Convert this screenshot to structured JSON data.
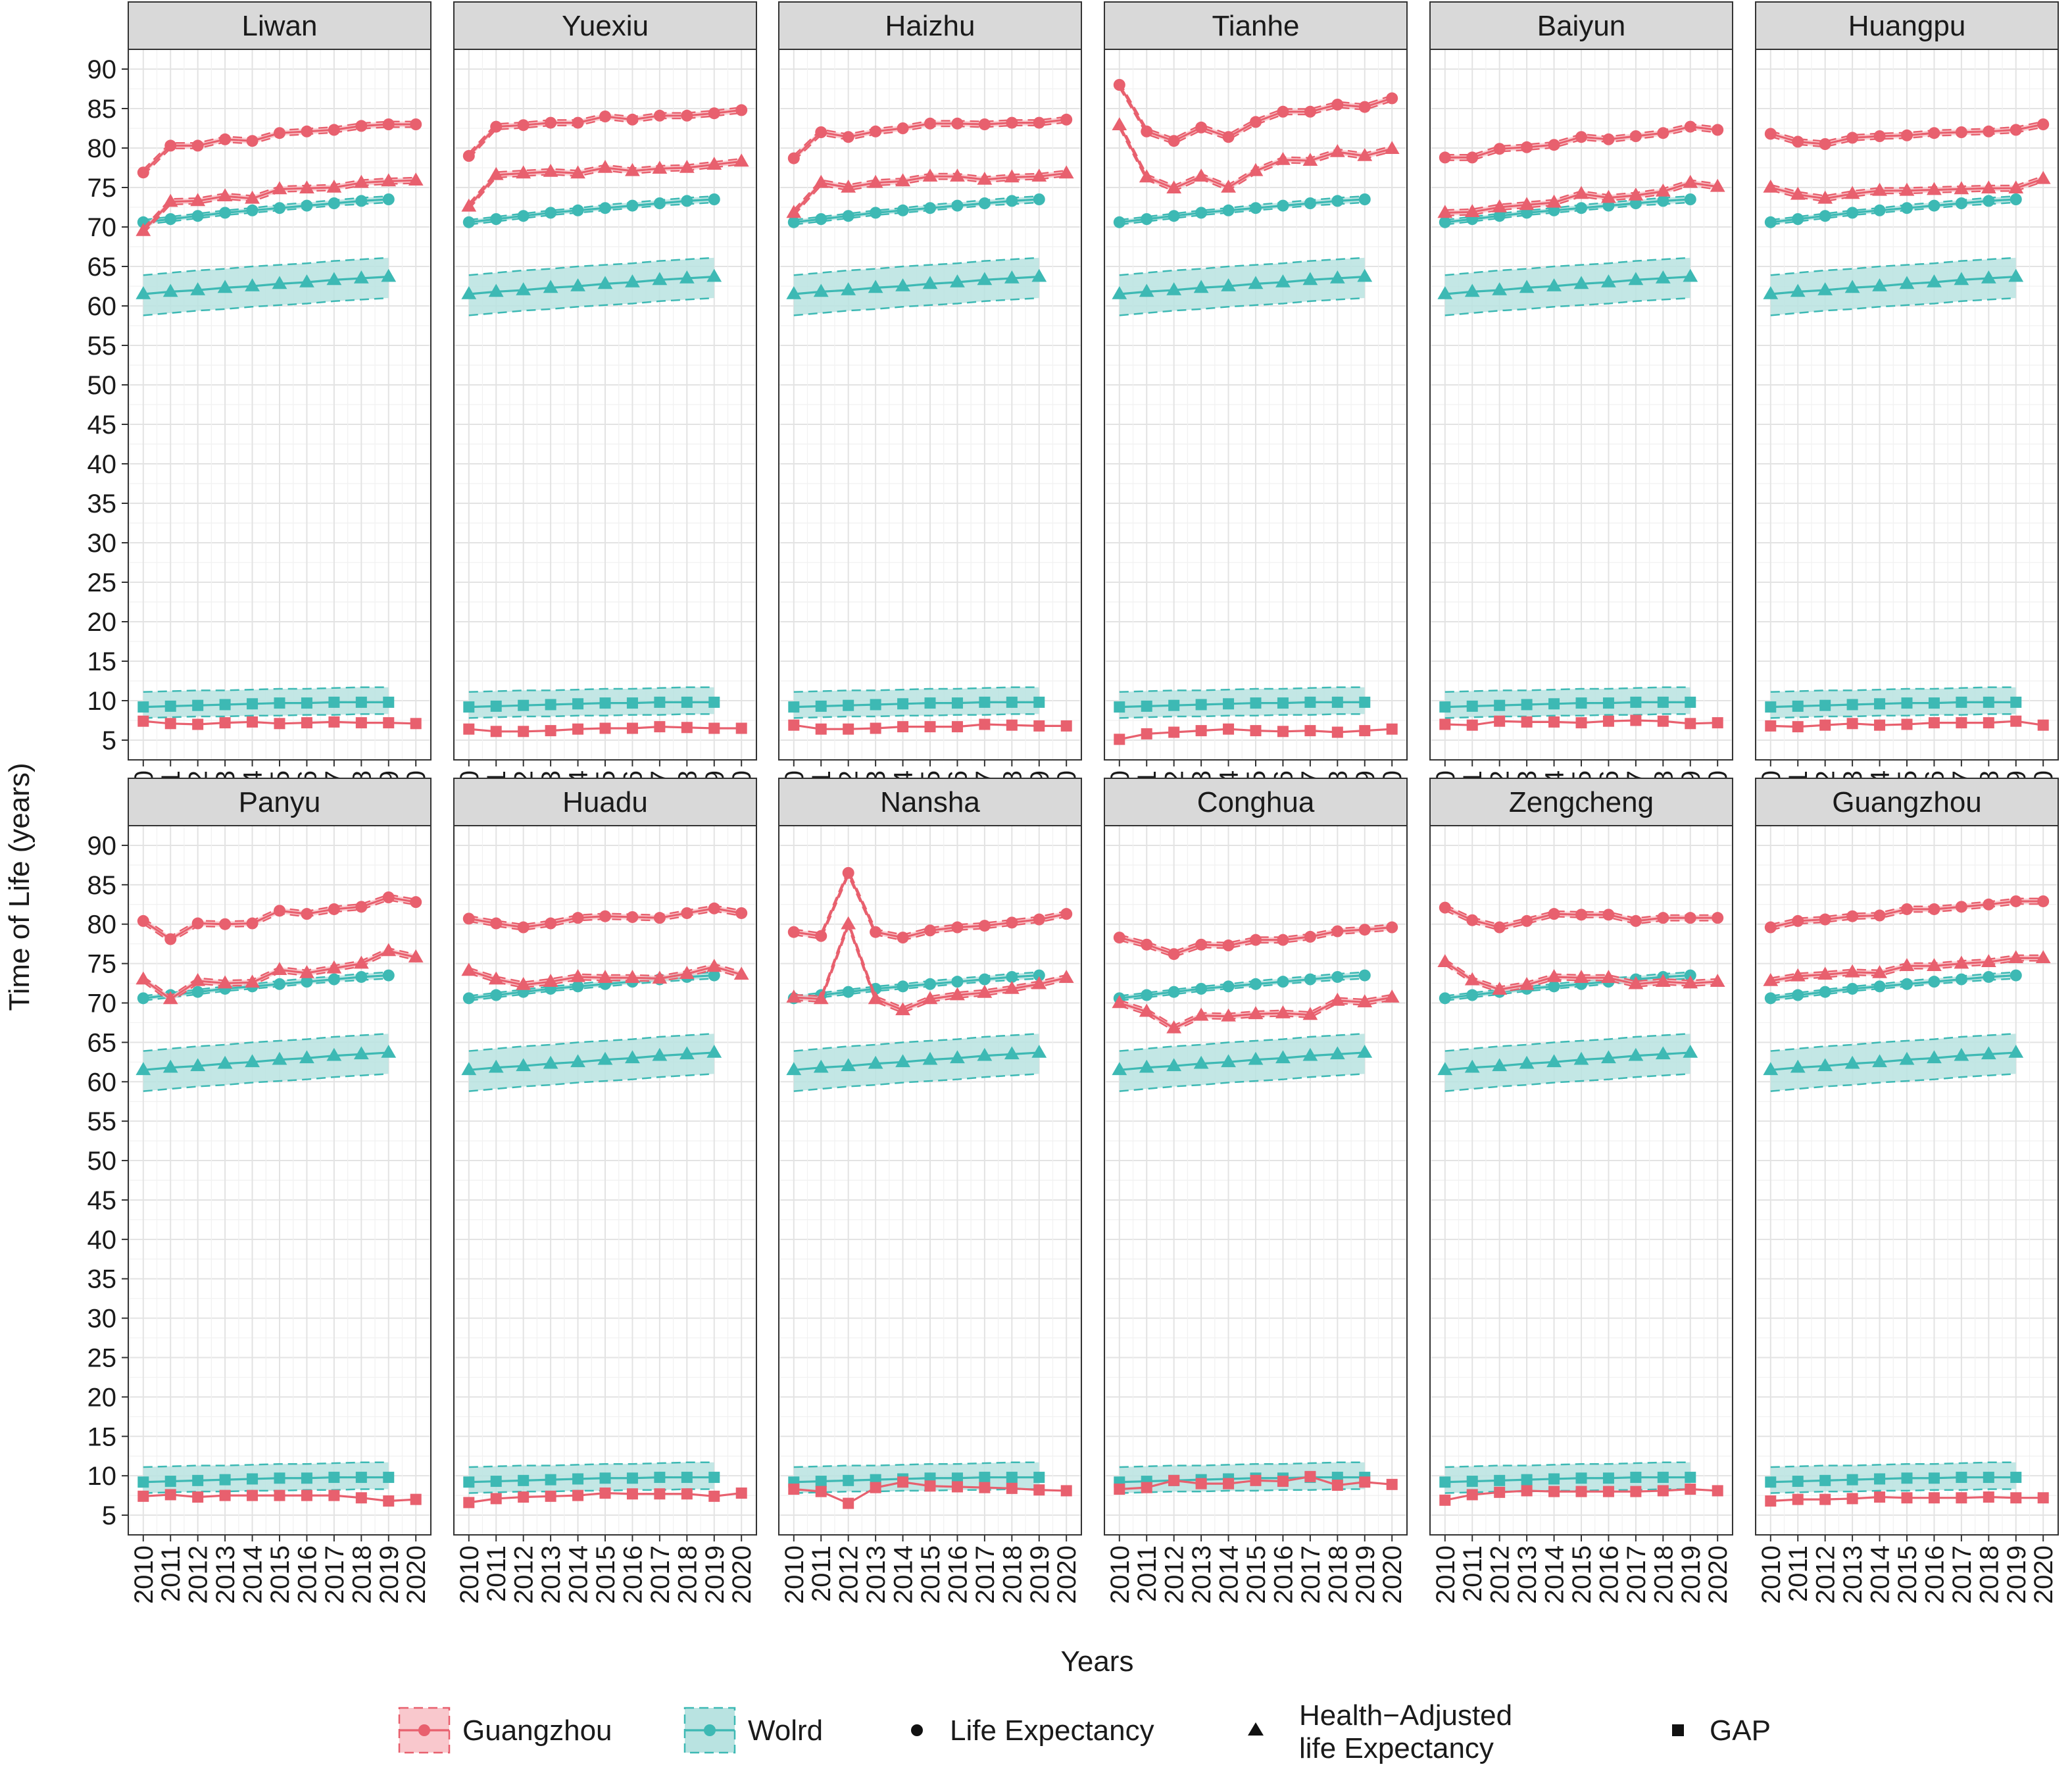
{
  "chart_data": {
    "type": "line",
    "layout": "faceted 2x6",
    "xlabel": "Years",
    "ylabel": "Time of Life (years)",
    "x": [
      2010,
      2011,
      2012,
      2013,
      2014,
      2015,
      2016,
      2017,
      2018,
      2019,
      2020
    ],
    "y_ticks": [
      5,
      10,
      15,
      20,
      25,
      30,
      35,
      40,
      45,
      50,
      55,
      60,
      65,
      70,
      75,
      80,
      85,
      90
    ],
    "ylim": [
      2.5,
      92.5
    ],
    "grid": true,
    "legend_position": "bottom",
    "colors": {
      "guangzhou": "#E8606E",
      "world": "#3DB9B4",
      "guangzhou_fill": "#F9C8CD",
      "world_fill": "#B9E3E1"
    },
    "legend": {
      "guangzhou": "Guangzhou",
      "world": "Wolrd",
      "le": "Life Expectancy",
      "hale_line1": "Health−Adjusted",
      "hale_line2": "life Expectancy",
      "gap": "GAP"
    },
    "world": {
      "years": [
        2010,
        2011,
        2012,
        2013,
        2014,
        2015,
        2016,
        2017,
        2018,
        2019
      ],
      "le": [
        70.6,
        71.0,
        71.4,
        71.8,
        72.1,
        72.4,
        72.7,
        73.0,
        73.3,
        73.5
      ],
      "le_lower": [
        70.3,
        70.7,
        71.1,
        71.5,
        71.8,
        72.1,
        72.4,
        72.7,
        72.9,
        73.1
      ],
      "le_upper": [
        70.9,
        71.3,
        71.7,
        72.1,
        72.4,
        72.8,
        73.1,
        73.4,
        73.7,
        73.9
      ],
      "hale": [
        61.5,
        61.8,
        62.0,
        62.3,
        62.5,
        62.8,
        63.0,
        63.3,
        63.5,
        63.7
      ],
      "hale_lower": [
        58.8,
        59.1,
        59.4,
        59.6,
        59.9,
        60.1,
        60.3,
        60.6,
        60.8,
        61.0
      ],
      "hale_upper": [
        63.9,
        64.2,
        64.5,
        64.7,
        65.0,
        65.2,
        65.4,
        65.7,
        65.9,
        66.1
      ],
      "gap": [
        9.2,
        9.3,
        9.4,
        9.5,
        9.6,
        9.7,
        9.7,
        9.8,
        9.8,
        9.8
      ],
      "gap_lower": [
        7.8,
        7.9,
        8.0,
        8.0,
        8.1,
        8.1,
        8.2,
        8.2,
        8.3,
        8.3
      ],
      "gap_upper": [
        11.1,
        11.2,
        11.3,
        11.3,
        11.4,
        11.5,
        11.5,
        11.6,
        11.7,
        11.7
      ]
    },
    "facets": [
      {
        "name": "Liwan",
        "le": [
          76.9,
          80.3,
          80.3,
          81.1,
          80.9,
          81.9,
          82.1,
          82.3,
          82.8,
          83.0,
          83.0
        ],
        "hale": [
          69.5,
          73.2,
          73.3,
          73.9,
          73.6,
          74.8,
          74.9,
          75.0,
          75.6,
          75.8,
          75.9
        ],
        "gap": [
          7.4,
          7.1,
          7.0,
          7.2,
          7.3,
          7.1,
          7.2,
          7.3,
          7.2,
          7.2,
          7.1
        ]
      },
      {
        "name": "Yuexiu",
        "le": [
          79.0,
          82.7,
          82.9,
          83.2,
          83.2,
          84.0,
          83.6,
          84.1,
          84.1,
          84.4,
          84.8
        ],
        "hale": [
          72.6,
          76.6,
          76.8,
          77.0,
          76.8,
          77.5,
          77.1,
          77.4,
          77.5,
          77.9,
          78.3
        ],
        "gap": [
          6.4,
          6.1,
          6.1,
          6.2,
          6.4,
          6.5,
          6.5,
          6.7,
          6.6,
          6.5,
          6.5
        ]
      },
      {
        "name": "Haizhu",
        "le": [
          78.7,
          82.0,
          81.4,
          82.1,
          82.5,
          83.1,
          83.1,
          83.0,
          83.2,
          83.2,
          83.6
        ],
        "hale": [
          71.8,
          75.6,
          75.0,
          75.6,
          75.8,
          76.4,
          76.4,
          76.0,
          76.3,
          76.4,
          76.8
        ],
        "gap": [
          6.9,
          6.4,
          6.4,
          6.5,
          6.7,
          6.7,
          6.7,
          7.0,
          6.9,
          6.8,
          6.8
        ]
      },
      {
        "name": "Tianhe",
        "le": [
          88.0,
          82.1,
          80.9,
          82.6,
          81.4,
          83.3,
          84.6,
          84.6,
          85.5,
          85.2,
          86.3
        ],
        "hale": [
          82.9,
          76.3,
          74.9,
          76.4,
          75.0,
          77.1,
          78.5,
          78.4,
          79.5,
          79.0,
          79.9
        ],
        "gap": [
          5.1,
          5.8,
          6.0,
          6.2,
          6.4,
          6.2,
          6.1,
          6.2,
          6.0,
          6.2,
          6.4
        ]
      },
      {
        "name": "Baiyun",
        "le": [
          78.8,
          78.8,
          79.9,
          80.1,
          80.4,
          81.4,
          81.1,
          81.5,
          81.9,
          82.7,
          82.3
        ],
        "hale": [
          71.8,
          71.9,
          72.5,
          72.8,
          73.1,
          74.2,
          73.7,
          74.0,
          74.5,
          75.6,
          75.1
        ],
        "gap": [
          7.0,
          6.9,
          7.4,
          7.3,
          7.3,
          7.2,
          7.4,
          7.5,
          7.4,
          7.1,
          7.2
        ]
      },
      {
        "name": "Huangpu",
        "le": [
          81.8,
          80.8,
          80.5,
          81.3,
          81.5,
          81.6,
          81.9,
          82.0,
          82.1,
          82.3,
          83.0
        ],
        "hale": [
          75.0,
          74.1,
          73.6,
          74.2,
          74.6,
          74.6,
          74.7,
          74.8,
          74.9,
          74.9,
          76.1
        ],
        "gap": [
          6.8,
          6.7,
          6.9,
          7.1,
          6.9,
          7.0,
          7.2,
          7.2,
          7.2,
          7.4,
          6.9
        ]
      },
      {
        "name": "Panyu",
        "le": [
          80.4,
          78.1,
          80.1,
          80.0,
          80.1,
          81.7,
          81.3,
          81.9,
          82.2,
          83.4,
          82.8
        ],
        "hale": [
          73.0,
          70.5,
          72.8,
          72.5,
          72.6,
          74.2,
          73.8,
          74.4,
          75.0,
          76.6,
          75.8
        ],
        "gap": [
          7.4,
          7.6,
          7.3,
          7.5,
          7.5,
          7.5,
          7.5,
          7.5,
          7.2,
          6.8,
          7.0
        ]
      },
      {
        "name": "Huadu",
        "le": [
          80.7,
          80.1,
          79.6,
          80.1,
          80.8,
          81.0,
          80.9,
          80.8,
          81.4,
          82.0,
          81.4
        ],
        "hale": [
          74.1,
          73.0,
          72.3,
          72.7,
          73.3,
          73.2,
          73.2,
          73.1,
          73.7,
          74.6,
          73.6
        ],
        "gap": [
          6.6,
          7.1,
          7.3,
          7.4,
          7.5,
          7.8,
          7.7,
          7.7,
          7.7,
          7.4,
          7.8
        ]
      },
      {
        "name": "Nansha",
        "le": [
          79.0,
          78.5,
          86.5,
          79.0,
          78.3,
          79.2,
          79.6,
          79.8,
          80.2,
          80.6,
          81.3
        ],
        "hale": [
          70.7,
          70.5,
          80.0,
          70.5,
          69.1,
          70.5,
          71.0,
          71.3,
          71.8,
          72.4,
          73.2
        ],
        "gap": [
          8.3,
          8.0,
          6.5,
          8.5,
          9.2,
          8.7,
          8.6,
          8.5,
          8.4,
          8.2,
          8.1
        ]
      },
      {
        "name": "Conghua",
        "le": [
          78.3,
          77.4,
          76.2,
          77.4,
          77.3,
          78.0,
          78.0,
          78.4,
          79.1,
          79.3,
          79.6
        ],
        "hale": [
          70.0,
          68.9,
          66.8,
          68.4,
          68.3,
          68.6,
          68.7,
          68.5,
          70.3,
          70.1,
          70.7
        ],
        "gap": [
          8.3,
          8.5,
          9.4,
          9.0,
          9.0,
          9.4,
          9.3,
          9.9,
          8.8,
          9.2,
          8.9
        ]
      },
      {
        "name": "Zengcheng",
        "le": [
          82.1,
          80.5,
          79.6,
          80.4,
          81.3,
          81.2,
          81.2,
          80.4,
          80.8,
          80.8,
          80.8
        ],
        "hale": [
          75.2,
          72.9,
          71.7,
          72.3,
          73.3,
          73.2,
          73.2,
          72.4,
          72.7,
          72.5,
          72.7
        ],
        "gap": [
          6.9,
          7.6,
          7.9,
          8.1,
          8.0,
          8.0,
          8.0,
          8.0,
          8.1,
          8.3,
          8.1
        ]
      },
      {
        "name": "Guangzhou",
        "le": [
          79.6,
          80.4,
          80.6,
          81.0,
          81.1,
          81.9,
          81.9,
          82.2,
          82.5,
          82.9,
          82.9
        ],
        "hale": [
          72.8,
          73.4,
          73.6,
          73.9,
          73.8,
          74.7,
          74.7,
          75.0,
          75.2,
          75.7,
          75.7
        ],
        "gap": [
          6.8,
          7.0,
          7.0,
          7.1,
          7.3,
          7.2,
          7.2,
          7.2,
          7.3,
          7.2,
          7.2
        ]
      }
    ]
  }
}
